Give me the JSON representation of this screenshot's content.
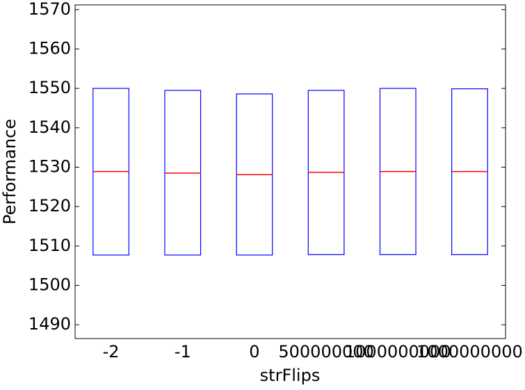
{
  "chart_data": {
    "type": "box",
    "xlabel": "strFlips",
    "ylabel": "Performance",
    "categories": [
      "-2",
      "-1",
      "0",
      "500000000",
      "1000000000",
      "1000000000"
    ],
    "q1": [
      1507.7,
      1507.7,
      1507.7,
      1507.8,
      1507.8,
      1507.8
    ],
    "median": [
      1528.9,
      1528.5,
      1528.1,
      1528.7,
      1528.9,
      1528.9
    ],
    "q3": [
      1550.0,
      1549.5,
      1548.6,
      1549.5,
      1550.0,
      1549.9
    ],
    "box_color": "#0000ff",
    "median_color": "#ff0000",
    "ylim": [
      1486.5,
      1571.2
    ],
    "yticks": [
      1490,
      1500,
      1510,
      1520,
      1530,
      1540,
      1550,
      1560,
      1570
    ]
  }
}
